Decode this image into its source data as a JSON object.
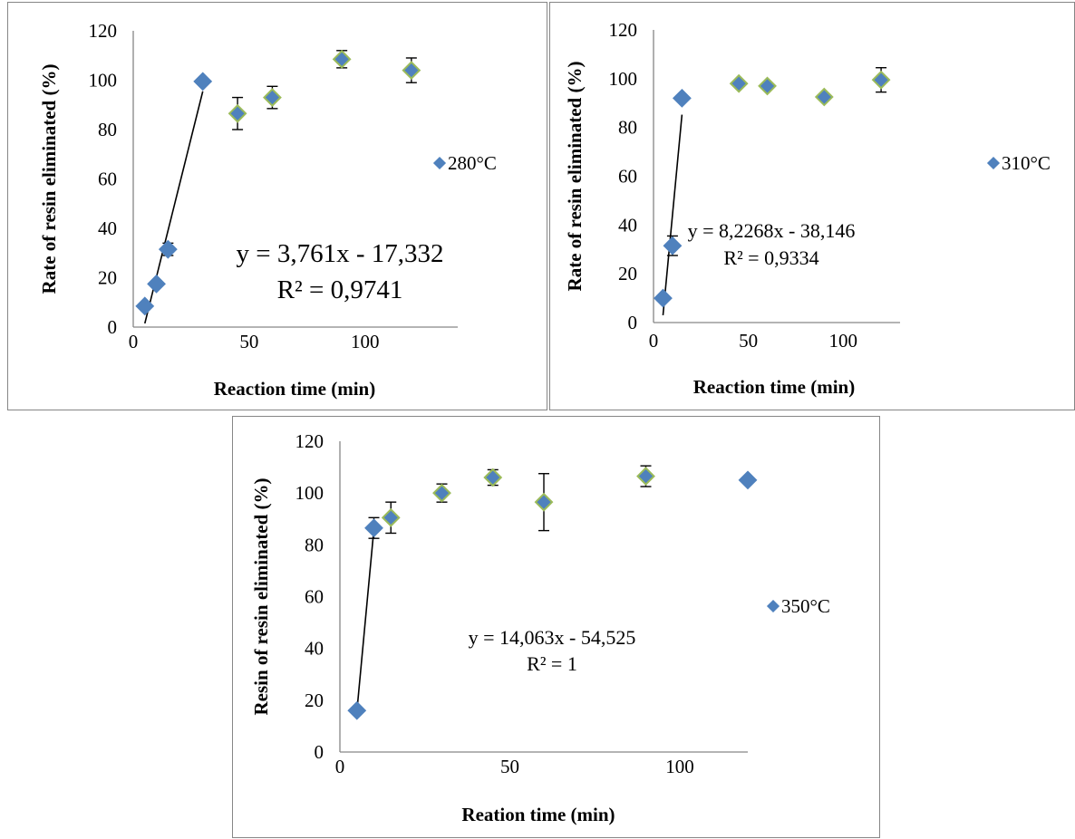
{
  "colors": {
    "marker_fill": "#4f81bd",
    "marker_stroke_default": "#4f81bd",
    "marker_stroke_highlight": "#9bbb59",
    "trendline": "#000000",
    "axis": "#868686",
    "frame": "#868686"
  },
  "chart_data": [
    {
      "type": "scatter",
      "title": "",
      "xlabel": "Reaction time (min)",
      "ylabel": "Rate of resin eliminated  (%)",
      "xlim": [
        0,
        140
      ],
      "ylim": [
        0,
        120
      ],
      "xticks": [
        0,
        50,
        100
      ],
      "yticks": [
        0,
        20,
        40,
        60,
        80,
        100,
        120
      ],
      "legend_position": "right",
      "grid": false,
      "marker": "diamond",
      "series": [
        {
          "name": "280°C",
          "x": [
            5,
            10,
            15,
            30,
            45,
            60,
            90,
            120
          ],
          "y": [
            8.5,
            17.5,
            31.5,
            99.5,
            86.5,
            93,
            108.5,
            104
          ],
          "error": [
            0,
            0,
            2.5,
            0,
            6.5,
            4.5,
            3.5,
            5
          ],
          "highlight": [
            false,
            false,
            false,
            false,
            true,
            true,
            true,
            true
          ]
        }
      ],
      "trendline": {
        "x_range": [
          5,
          30
        ],
        "slope": 3.761,
        "intercept": -17.332,
        "equation": "y = 3,761x - 17,332",
        "r2": "R² = 0,9741"
      }
    },
    {
      "type": "scatter",
      "title": "",
      "xlabel": "Reaction time (min)",
      "ylabel": "Rate of resin eliminated  (%)",
      "xlim": [
        0,
        130
      ],
      "ylim": [
        0,
        120
      ],
      "xticks": [
        0,
        50,
        100
      ],
      "yticks": [
        0,
        20,
        40,
        60,
        80,
        100,
        120
      ],
      "legend_position": "right",
      "grid": false,
      "marker": "diamond",
      "series": [
        {
          "name": "310°C",
          "x": [
            5,
            10,
            15,
            45,
            60,
            90,
            120
          ],
          "y": [
            10,
            31.5,
            92,
            98,
            97,
            92.5,
            99.5
          ],
          "error": [
            0,
            4,
            0,
            0,
            0,
            0,
            5
          ],
          "highlight": [
            false,
            false,
            false,
            true,
            true,
            true,
            true
          ]
        }
      ],
      "trendline": {
        "x_range": [
          5,
          15
        ],
        "slope": 8.2268,
        "intercept": -38.146,
        "equation": "y = 8,2268x - 38,146",
        "r2": "R² = 0,9334"
      }
    },
    {
      "type": "scatter",
      "title": "",
      "xlabel": "Reation time (min)",
      "ylabel": "Resin of resin eliminated  (%)",
      "xlim": [
        0,
        120
      ],
      "ylim": [
        0,
        120
      ],
      "xticks": [
        0,
        50,
        100
      ],
      "yticks": [
        0,
        20,
        40,
        60,
        80,
        100,
        120
      ],
      "legend_position": "right",
      "grid": false,
      "marker": "diamond",
      "series": [
        {
          "name": "350°C",
          "x": [
            5,
            10,
            15,
            30,
            45,
            60,
            90,
            120
          ],
          "y": [
            16,
            86.5,
            90.5,
            100,
            106,
            96.5,
            106.5,
            105
          ],
          "error": [
            0,
            4,
            6,
            3.5,
            3,
            11,
            4,
            0
          ],
          "highlight": [
            false,
            false,
            true,
            true,
            true,
            true,
            true,
            false
          ]
        }
      ],
      "trendline": {
        "x_range": [
          5,
          10
        ],
        "slope": 14.063,
        "intercept": -54.525,
        "equation": "y = 14,063x - 54,525",
        "r2": "R² = 1"
      }
    }
  ]
}
